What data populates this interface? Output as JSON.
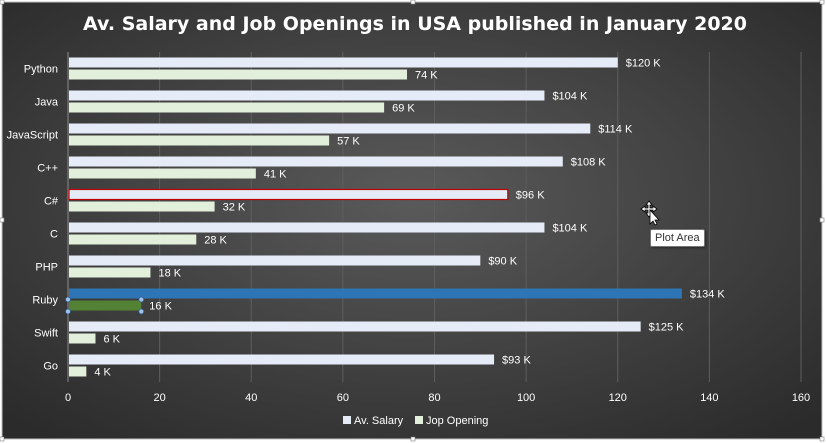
{
  "colors": {
    "salary": "#e6ecf7",
    "opening": "#e2efda",
    "salary_highlight": "#2e75b6",
    "opening_highlight": "#548235",
    "c_sharp_outline": "#c00000"
  },
  "tooltip": {
    "text": "Plot Area",
    "icon": "move-cursor-icon"
  },
  "chart_data": {
    "type": "bar",
    "orientation": "horizontal",
    "title": "Av. Salary and Job Openings in USA published in January 2020",
    "categories": [
      "Python",
      "Java",
      "JavaScript",
      "C++",
      "C#",
      "C",
      "PHP",
      "Ruby",
      "Swift",
      "Go"
    ],
    "series": [
      {
        "name": "Av. Salary",
        "values": [
          120,
          104,
          114,
          108,
          96,
          104,
          90,
          134,
          125,
          93
        ],
        "labels": [
          "$120 K",
          "$104 K",
          "$114 K",
          "$108 K",
          "$96 K",
          "$104 K",
          "$90 K",
          "$134 K",
          "$125 K",
          "$93 K"
        ]
      },
      {
        "name": "Jop Opening",
        "values": [
          74,
          69,
          57,
          41,
          32,
          28,
          18,
          16,
          6,
          4
        ],
        "labels": [
          "74 K",
          "69 K",
          "57 K",
          "41 K",
          "32 K",
          "28 K",
          "18 K",
          "16 K",
          "6 K",
          "4 K"
        ]
      }
    ],
    "xlim": [
      0,
      160
    ],
    "xticks": [
      0,
      20,
      40,
      60,
      80,
      100,
      120,
      140,
      160
    ],
    "grid": true,
    "legend": "bottom",
    "xlabel": "",
    "ylabel": ""
  }
}
